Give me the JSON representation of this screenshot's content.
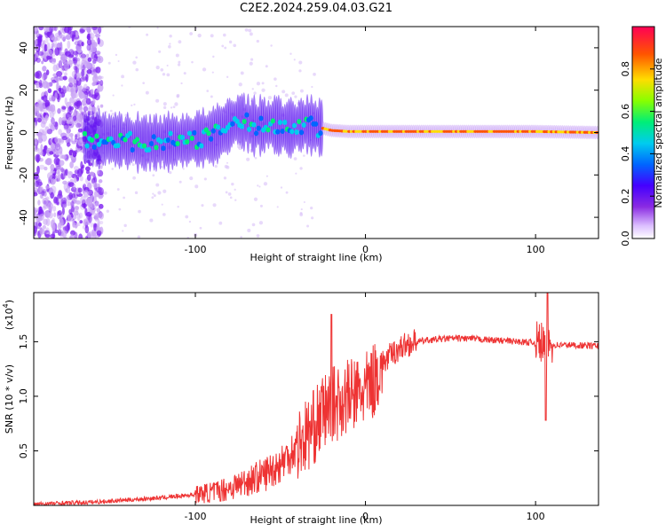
{
  "title": "C2E2.2024.259.04.03.G21",
  "chart_data": [
    {
      "type": "heatmap",
      "name": "spectrogram",
      "xlabel": "Height of straight line (km)",
      "ylabel": "Frequency (Hz)",
      "xlim": [
        -195,
        137
      ],
      "ylim": [
        -50,
        50
      ],
      "xticks": [
        -100,
        0,
        100
      ],
      "yticks": [
        -40,
        -20,
        0,
        20,
        40
      ],
      "colorbar": {
        "label": "Normalized spectral amplitude",
        "range": [
          0,
          1
        ],
        "ticks": [
          0.0,
          0.2,
          0.4,
          0.6,
          0.8
        ],
        "colors": [
          "#ffffff",
          "#cc99ff",
          "#6600ff",
          "#0033ff",
          "#00ccff",
          "#00ff66",
          "#99ff00",
          "#ffcc00",
          "#ff3300",
          "#ff0066"
        ]
      },
      "ridge": {
        "x": [
          -165,
          -150,
          -130,
          -110,
          -90,
          -75,
          -65,
          -55,
          -45,
          -35,
          -30,
          -20,
          -10,
          0,
          20,
          60,
          100,
          137
        ],
        "y": [
          -3,
          -3,
          -5,
          -4,
          -2,
          6,
          3,
          4,
          2,
          4,
          3,
          1,
          0.5,
          0.5,
          0.5,
          0.5,
          0.5,
          0
        ]
      }
    },
    {
      "type": "line",
      "name": "snr",
      "xlabel": "Height of straight line (km)",
      "ylabel": "SNR (10 * v/v)",
      "scale_label": "(x10",
      "scale_exp": "4",
      "xlim": [
        -195,
        137
      ],
      "ylim": [
        0,
        1.95
      ],
      "xticks": [
        -100,
        0,
        100
      ],
      "yticks": [
        0.5,
        1.0,
        1.5
      ],
      "color": "#ee3333",
      "x": [
        -195,
        -180,
        -160,
        -140,
        -120,
        -100,
        -90,
        -80,
        -70,
        -60,
        -50,
        -40,
        -30,
        -25,
        -20,
        -15,
        -10,
        -5,
        0,
        5,
        10,
        15,
        20,
        25,
        30,
        40,
        50,
        60,
        70,
        80,
        90,
        100,
        103,
        105,
        107,
        110,
        120,
        137
      ],
      "y": [
        0.01,
        0.02,
        0.03,
        0.05,
        0.07,
        0.1,
        0.12,
        0.16,
        0.22,
        0.28,
        0.38,
        0.55,
        0.72,
        0.85,
        0.92,
        0.95,
        1.0,
        1.02,
        1.05,
        1.15,
        1.3,
        1.38,
        1.44,
        1.48,
        1.5,
        1.52,
        1.53,
        1.53,
        1.52,
        1.51,
        1.5,
        1.49,
        1.49,
        1.48,
        1.47,
        1.47,
        1.47,
        1.46
      ]
    }
  ]
}
